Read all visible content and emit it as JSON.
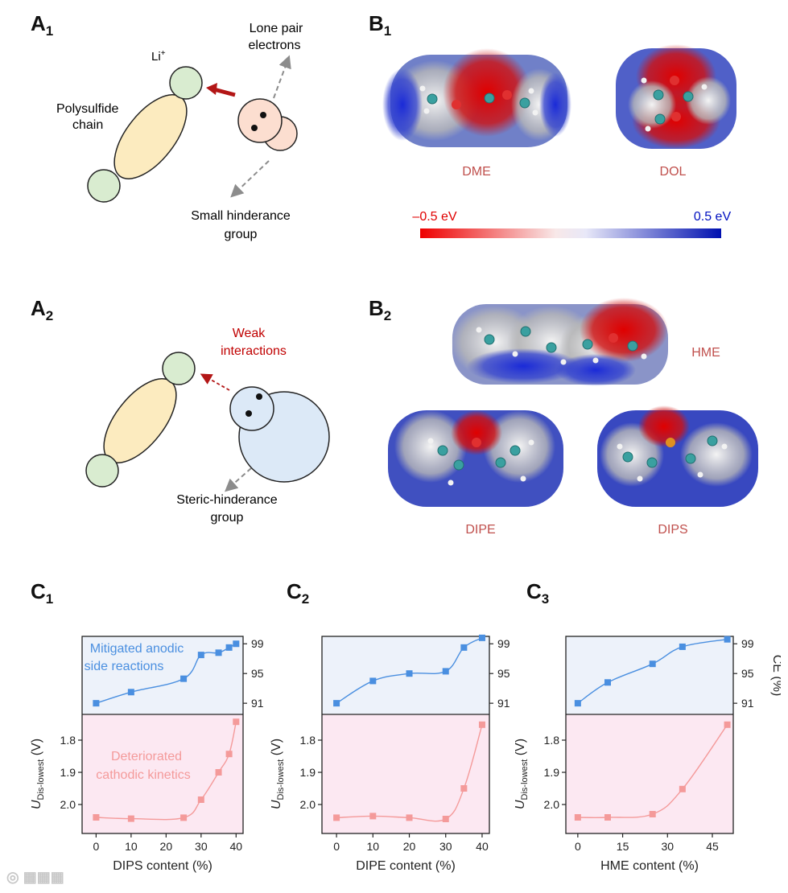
{
  "panels": {
    "a1": {
      "letter": "A",
      "sub": "1"
    },
    "a2": {
      "letter": "A",
      "sub": "2"
    },
    "b1": {
      "letter": "B",
      "sub": "1"
    },
    "b2": {
      "letter": "B",
      "sub": "2"
    },
    "c1": {
      "letter": "C",
      "sub": "1"
    },
    "c2": {
      "letter": "C",
      "sub": "2"
    },
    "c3": {
      "letter": "C",
      "sub": "3"
    }
  },
  "schematic_a1": {
    "li": "Li",
    "li_sup": "+",
    "polysulfide_line1": "Polysulfide",
    "polysulfide_line2": "chain",
    "lone_pair_line1": "Lone pair",
    "lone_pair_line2": "electrons",
    "small_group_line1": "Small hinderance",
    "small_group_line2": "group"
  },
  "schematic_a2": {
    "weak_line1": "Weak",
    "weak_line2": "interactions",
    "steric_line1": "Steric-hinderance",
    "steric_line2": "group"
  },
  "esp": {
    "dme": "DME",
    "dol": "DOL",
    "hme": "HME",
    "dipe": "DIPE",
    "dips": "DIPS",
    "scale_min": "–0.5 eV",
    "scale_max": "0.5 eV"
  },
  "colors": {
    "ce_series": "#4a8fe0",
    "u_series": "#f49a9a",
    "top_bg": "#edf2fa",
    "bottom_bg": "#fce8f2",
    "label_red": "#c0504d",
    "scale_red": "#e00000",
    "scale_blue": "#0010c0"
  },
  "chart_data": [
    {
      "type": "line",
      "xlabel": "DIPS content (%)",
      "x_ticks": [
        0,
        10,
        20,
        30,
        40
      ],
      "xlim": [
        -4,
        42
      ],
      "top_annotation_line1": "Mitigated anodic",
      "top_annotation_line2": "side reactions",
      "bottom_annotation_line1": "Deteriorated",
      "bottom_annotation_line2": "cathodic kinetics",
      "ce_axis": {
        "label": "CE (%)",
        "ticks": [
          91,
          95,
          99
        ],
        "ylim": [
          89.5,
          100
        ]
      },
      "u_axis": {
        "label_main": "U",
        "label_sub": "Dis-lowest",
        "label_unit": " (V)",
        "ticks": [
          "1.8",
          "1.9",
          "2.0"
        ],
        "tick_values": [
          1.8,
          1.9,
          2.0
        ],
        "ylim": [
          1.72,
          2.09
        ],
        "reversed": true
      },
      "ce": {
        "x": [
          0,
          10,
          25,
          30,
          35,
          38,
          40
        ],
        "y": [
          91.0,
          92.5,
          94.3,
          97.5,
          97.8,
          98.5,
          99.0
        ]
      },
      "u": {
        "x": [
          0,
          10,
          25,
          30,
          35,
          38,
          40
        ],
        "y": [
          2.04,
          2.044,
          2.041,
          1.985,
          1.9,
          1.843,
          1.743
        ]
      }
    },
    {
      "type": "line",
      "xlabel": "DIPE content (%)",
      "x_ticks": [
        0,
        10,
        20,
        30,
        40
      ],
      "xlim": [
        -4,
        42
      ],
      "ce_axis": {
        "label": "CE (%)",
        "ticks": [
          91,
          95,
          99
        ],
        "ylim": [
          89.5,
          100
        ]
      },
      "u_axis": {
        "label_main": "U",
        "label_sub": "Dis-lowest",
        "label_unit": " (V)",
        "ticks": [
          "1.8",
          "1.9",
          "2.0"
        ],
        "tick_values": [
          1.8,
          1.9,
          2.0
        ],
        "ylim": [
          1.72,
          2.09
        ],
        "reversed": true
      },
      "ce": {
        "x": [
          0,
          10,
          20,
          30,
          35,
          40
        ],
        "y": [
          91.0,
          94.0,
          95.0,
          95.3,
          98.5,
          99.8
        ]
      },
      "u": {
        "x": [
          0,
          10,
          20,
          30,
          35,
          40
        ],
        "y": [
          2.041,
          2.036,
          2.041,
          2.045,
          1.95,
          1.752
        ]
      }
    },
    {
      "type": "line",
      "xlabel": "HME content (%)",
      "x_ticks": [
        0,
        15,
        30,
        45
      ],
      "xlim": [
        -4,
        52
      ],
      "ce_axis": {
        "label": "CE (%)",
        "ticks": [
          91,
          95,
          99
        ],
        "ylim": [
          89.5,
          100
        ]
      },
      "u_axis": {
        "label_main": "U",
        "label_sub": "Dis-lowest",
        "label_unit": " (V)",
        "ticks": [
          "1.8",
          "1.9",
          "2.0"
        ],
        "tick_values": [
          1.8,
          1.9,
          2.0
        ],
        "ylim": [
          1.72,
          2.09
        ],
        "reversed": true
      },
      "ce": {
        "x": [
          0,
          10,
          25,
          35,
          50
        ],
        "y": [
          91.0,
          93.8,
          96.3,
          98.6,
          99.6
        ]
      },
      "u": {
        "x": [
          0,
          10,
          25,
          35,
          50
        ],
        "y": [
          2.04,
          2.04,
          2.03,
          1.952,
          1.752
        ]
      }
    }
  ]
}
